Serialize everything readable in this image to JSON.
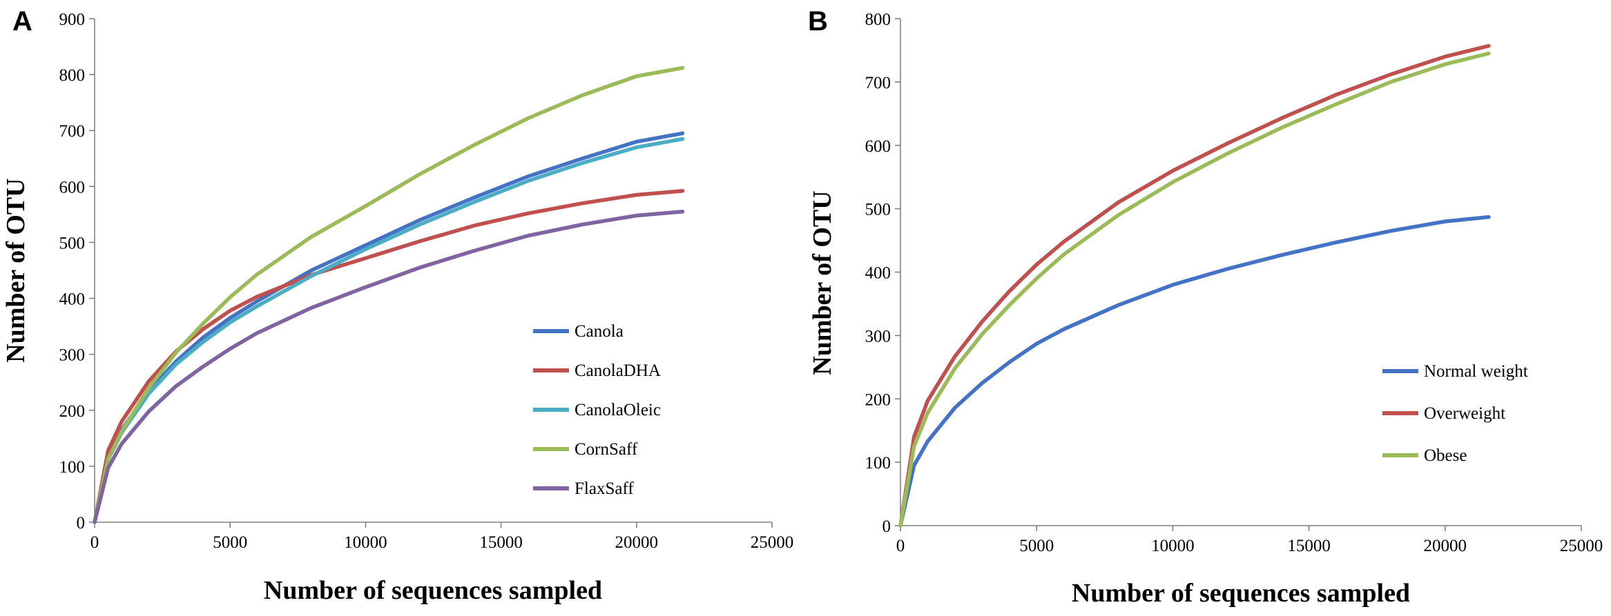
{
  "chart_data": [
    {
      "panel": "A",
      "type": "line",
      "title": "",
      "xlabel": "Number of sequences sampled",
      "ylabel": "Number of OTU",
      "xlim": [
        0,
        25000
      ],
      "ylim": [
        0,
        900
      ],
      "xticks": [
        0,
        5000,
        10000,
        15000,
        20000,
        25000
      ],
      "yticks": [
        0,
        100,
        200,
        300,
        400,
        500,
        600,
        700,
        800,
        900
      ],
      "legend_position": "lower-right",
      "grid": false,
      "x": [
        0,
        500,
        1000,
        2000,
        3000,
        4000,
        5000,
        6000,
        8000,
        10000,
        12000,
        14000,
        16000,
        18000,
        20000,
        21700
      ],
      "series": [
        {
          "name": "Canola",
          "color": "#4472C4",
          "values": [
            0,
            115,
            165,
            235,
            287,
            330,
            365,
            395,
            450,
            495,
            540,
            580,
            618,
            650,
            680,
            695
          ]
        },
        {
          "name": "CanolaDHA",
          "color": "#C0504D",
          "values": [
            0,
            128,
            180,
            252,
            305,
            345,
            378,
            403,
            442,
            472,
            502,
            530,
            552,
            570,
            585,
            592
          ]
        },
        {
          "name": "CanolaOleic",
          "color": "#4BACC6",
          "values": [
            0,
            112,
            160,
            230,
            282,
            322,
            357,
            386,
            440,
            488,
            532,
            572,
            610,
            642,
            670,
            685
          ]
        },
        {
          "name": "CornSaff",
          "color": "#9BBB59",
          "values": [
            0,
            113,
            162,
            240,
            303,
            355,
            402,
            443,
            510,
            565,
            622,
            674,
            722,
            763,
            797,
            812
          ]
        },
        {
          "name": "FlaxSaff",
          "color": "#8064A2",
          "values": [
            0,
            97,
            140,
            198,
            243,
            278,
            310,
            338,
            383,
            420,
            455,
            485,
            512,
            532,
            548,
            555
          ]
        }
      ]
    },
    {
      "panel": "B",
      "type": "line",
      "title": "",
      "xlabel": "Number of sequences sampled",
      "ylabel": "Number of OTU",
      "xlim": [
        0,
        25000
      ],
      "ylim": [
        0,
        800
      ],
      "xticks": [
        0,
        5000,
        10000,
        15000,
        20000,
        25000
      ],
      "yticks": [
        0,
        100,
        200,
        300,
        400,
        500,
        600,
        700,
        800
      ],
      "legend_position": "lower-right",
      "grid": false,
      "x": [
        0,
        500,
        1000,
        2000,
        3000,
        4000,
        5000,
        6000,
        8000,
        10000,
        12000,
        14000,
        16000,
        18000,
        20000,
        21600
      ],
      "series": [
        {
          "name": "Normal weight",
          "color": "#4472C4",
          "values": [
            0,
            95,
            133,
            186,
            225,
            258,
            287,
            310,
            348,
            380,
            405,
            427,
            447,
            465,
            480,
            487
          ]
        },
        {
          "name": "Overweight",
          "color": "#C0504D",
          "values": [
            0,
            140,
            197,
            267,
            322,
            370,
            412,
            448,
            510,
            560,
            603,
            643,
            680,
            712,
            740,
            757
          ]
        },
        {
          "name": "Obese",
          "color": "#9BBB59",
          "values": [
            0,
            125,
            178,
            248,
            302,
            348,
            390,
            428,
            490,
            542,
            587,
            628,
            665,
            700,
            728,
            745
          ]
        }
      ]
    }
  ]
}
